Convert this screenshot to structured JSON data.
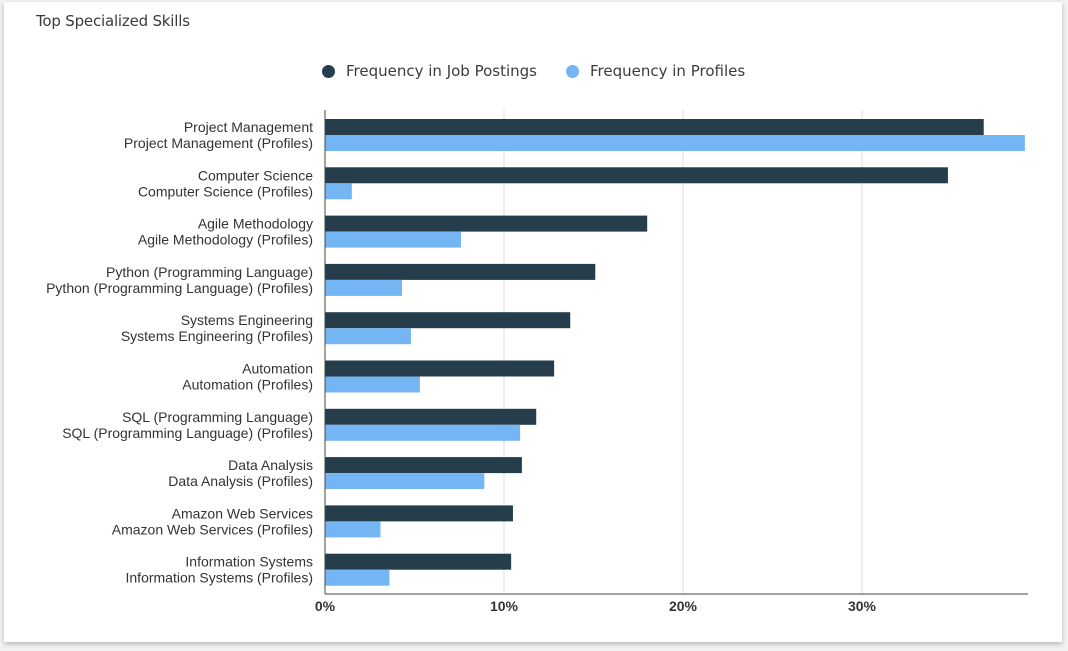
{
  "colors": {
    "job_postings": "#263d4b",
    "profiles": "#74b5f3",
    "grid": "#dcdcdc",
    "axis": "#444444"
  },
  "chart_data": {
    "type": "bar",
    "orientation": "horizontal",
    "title": "Top Specialized Skills",
    "legend_position": "top",
    "grid": true,
    "xlim": [
      0,
      39
    ],
    "xticks": [
      0,
      10,
      20,
      30
    ],
    "xtick_labels": [
      "0%",
      "10%",
      "20%",
      "30%"
    ],
    "categories": [
      "Project Management",
      "Computer Science",
      "Agile Methodology",
      "Python (Programming Language)",
      "Systems Engineering",
      "Automation",
      "SQL (Programming Language)",
      "Data Analysis",
      "Amazon Web Services",
      "Information Systems"
    ],
    "category_labels": [
      [
        "Project Management",
        "Project Management (Profiles)"
      ],
      [
        "Computer Science",
        "Computer Science (Profiles)"
      ],
      [
        "Agile Methodology",
        "Agile Methodology (Profiles)"
      ],
      [
        "Python (Programming Language)",
        "Python (Programming Language) (Profiles)"
      ],
      [
        "Systems Engineering",
        "Systems Engineering (Profiles)"
      ],
      [
        "Automation",
        "Automation (Profiles)"
      ],
      [
        "SQL (Programming Language)",
        "SQL (Programming Language) (Profiles)"
      ],
      [
        "Data Analysis",
        "Data Analysis (Profiles)"
      ],
      [
        "Amazon Web Services",
        "Amazon Web Services (Profiles)"
      ],
      [
        "Information Systems",
        "Information Systems (Profiles)"
      ]
    ],
    "series": [
      {
        "name": "Frequency in Job Postings",
        "values": [
          36.8,
          34.8,
          18.0,
          15.1,
          13.7,
          12.8,
          11.8,
          11.0,
          10.5,
          10.4
        ]
      },
      {
        "name": "Frequency in Profiles",
        "values": [
          39.1,
          1.5,
          7.6,
          4.3,
          4.8,
          5.3,
          10.9,
          8.9,
          3.1,
          3.6
        ]
      }
    ]
  }
}
